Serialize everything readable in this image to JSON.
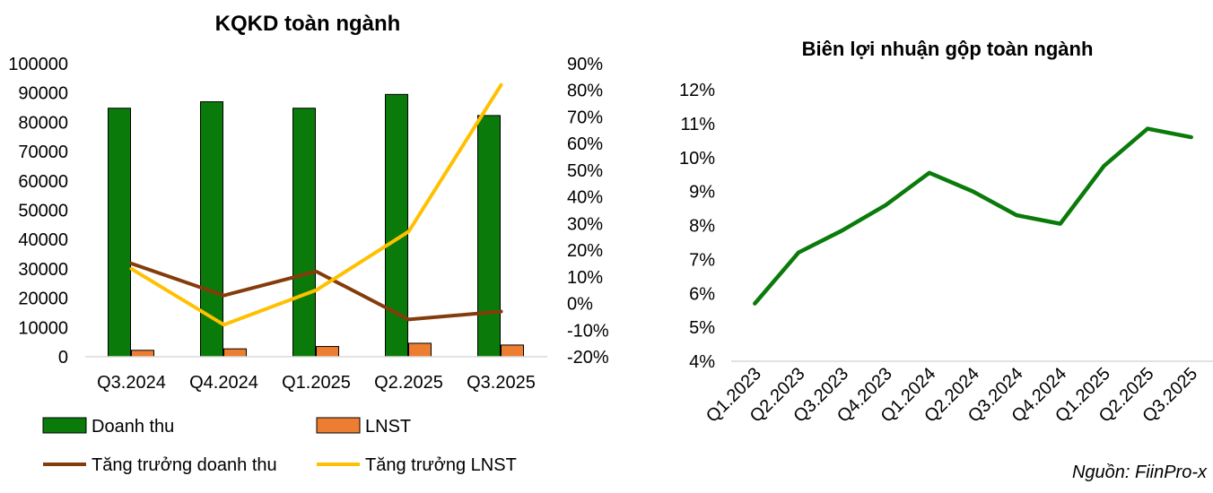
{
  "chart_data": [
    {
      "type": "bar",
      "title": "KQKD toàn ngành",
      "categories": [
        "Q3.2024",
        "Q4.2024",
        "Q1.2025",
        "Q2.2025",
        "Q3.2025"
      ],
      "y_left_ticks": [
        "100000",
        "90000",
        "80000",
        "70000",
        "60000",
        "50000",
        "40000",
        "30000",
        "20000",
        "10000",
        "0"
      ],
      "y_right_ticks": [
        "90%",
        "80%",
        "70%",
        "60%",
        "50%",
        "40%",
        "30%",
        "20%",
        "10%",
        "0%",
        "-10%",
        "-20%"
      ],
      "ylim_left": [
        0,
        100000
      ],
      "ylim_right": [
        -20,
        90
      ],
      "series": [
        {
          "name": "Doanh thu",
          "type": "bar",
          "axis": "left",
          "color": "#0a7a0a",
          "values": [
            84800,
            87000,
            84800,
            89500,
            82300
          ]
        },
        {
          "name": "LNST",
          "type": "bar",
          "axis": "left",
          "color": "#ed7d31",
          "values": [
            2200,
            2700,
            3500,
            4600,
            4000
          ]
        },
        {
          "name": "Tăng trưởng doanh thu",
          "type": "line",
          "axis": "right",
          "color": "#843c0c",
          "values": [
            15,
            3,
            12,
            -6,
            -3
          ]
        },
        {
          "name": "Tăng trưởng LNST",
          "type": "line",
          "axis": "right",
          "color": "#ffc000",
          "values": [
            13,
            -8,
            5,
            27,
            82
          ]
        }
      ],
      "legend_position": "bottom"
    },
    {
      "type": "line",
      "title": "Biên lợi nhuận gộp toàn ngành",
      "categories": [
        "Q1.2023",
        "Q2.2023",
        "Q3.2023",
        "Q4.2023",
        "Q1.2024",
        "Q2.2024",
        "Q3.2024",
        "Q4.2024",
        "Q1.2025",
        "Q2.2025",
        "Q3.2025"
      ],
      "y_ticks": [
        "12%",
        "11%",
        "10%",
        "9%",
        "8%",
        "7%",
        "6%",
        "5%",
        "4%"
      ],
      "ylim": [
        4,
        12
      ],
      "series": [
        {
          "color": "#0a7a0a",
          "values": [
            5.7,
            7.2,
            7.85,
            8.6,
            9.55,
            9.0,
            8.3,
            8.05,
            9.75,
            10.85,
            10.6
          ]
        }
      ]
    }
  ],
  "source": "Nguồn: FiinPro-x"
}
